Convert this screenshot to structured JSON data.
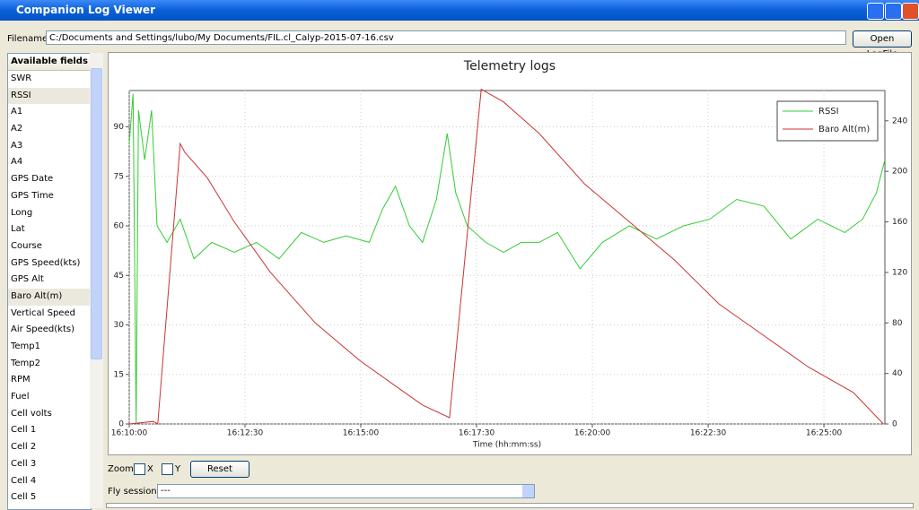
{
  "window": {
    "title": "Companion Log Viewer"
  },
  "filename": {
    "label": "Filename",
    "value": "C:/Documents and Settings/lubo/My Documents/FIL.cl_Calyp-2015-07-16.csv",
    "button": "Open LogFile"
  },
  "fields": {
    "header": "Available fields",
    "items": [
      "SWR",
      "RSSI",
      "A1",
      "A2",
      "A3",
      "A4",
      "GPS Date",
      "GPS Time",
      "Long",
      "Lat",
      "Course",
      "GPS Speed(kts)",
      "GPS Alt",
      "Baro Alt(m)",
      "Vertical Speed",
      "Air Speed(kts)",
      "Temp1",
      "Temp2",
      "RPM",
      "Fuel",
      "Cell volts",
      "Cell 1",
      "Cell 2",
      "Cell 3",
      "Cell 4",
      "Cell 5"
    ],
    "selected": [
      1,
      13
    ]
  },
  "controls": {
    "zoom": "Zoom",
    "x": "X",
    "y": "Y",
    "reset": "Reset",
    "fly_sessions": "Fly sessions",
    "session": "---"
  },
  "chart_data": {
    "type": "line",
    "title": "Telemetry logs",
    "x_label": "Time (hh:mm:ss)",
    "xlim": [
      "16:10:00",
      "16:26:19"
    ],
    "xticks": [
      "16:10:00",
      "16:12:30",
      "16:15:00",
      "16:17:30",
      "16:20:00",
      "16:22:30",
      "16:25:00"
    ],
    "ylim": [
      0,
      101
    ],
    "yticks": [
      0,
      15,
      30,
      45,
      60,
      75,
      90
    ],
    "y2lim": [
      0,
      264
    ],
    "y2ticks": [
      0,
      40,
      80,
      120,
      160,
      200,
      240
    ],
    "grid": true,
    "legend": "upper right",
    "series": [
      {
        "name": "RSSI",
        "color": "#33cc33",
        "x": [
          "16:10:00",
          "16:10:05",
          "16:10:09",
          "16:10:12",
          "16:10:20",
          "16:10:29",
          "16:10:36",
          "16:10:49",
          "16:11:06",
          "16:11:24",
          "16:11:47",
          "16:12:16",
          "16:12:45",
          "16:13:14",
          "16:13:43",
          "16:14:12",
          "16:14:41",
          "16:15:11",
          "16:15:28",
          "16:15:45",
          "16:16:03",
          "16:16:20",
          "16:16:38",
          "16:16:52",
          "16:17:03",
          "16:17:18",
          "16:17:42",
          "16:18:05",
          "16:18:28",
          "16:18:51",
          "16:19:15",
          "16:19:44",
          "16:20:13",
          "16:20:48",
          "16:21:23",
          "16:21:58",
          "16:22:32",
          "16:23:07",
          "16:23:42",
          "16:24:17",
          "16:24:52",
          "16:25:27",
          "16:25:50",
          "16:26:08",
          "16:26:19"
        ],
        "values": [
          85,
          100,
          0,
          95,
          80,
          95,
          60,
          55,
          62,
          50,
          55,
          52,
          55,
          50,
          58,
          55,
          57,
          55,
          65,
          72,
          60,
          55,
          68,
          88,
          70,
          60,
          55,
          52,
          55,
          55,
          58,
          47,
          55,
          60,
          56,
          60,
          62,
          68,
          66,
          56,
          62,
          58,
          62,
          70,
          80
        ]
      },
      {
        "name": "Baro Alt(m)",
        "color": "#cc3333",
        "axis": "y2",
        "x": [
          "16:10:00",
          "16:10:31",
          "16:10:37",
          "16:11:06",
          "16:11:12",
          "16:11:41",
          "16:12:16",
          "16:13:03",
          "16:14:01",
          "16:14:59",
          "16:15:45",
          "16:16:20",
          "16:16:55",
          "16:17:36",
          "16:18:05",
          "16:18:51",
          "16:19:50",
          "16:20:48",
          "16:21:46",
          "16:22:44",
          "16:23:42",
          "16:24:40",
          "16:25:38",
          "16:26:17"
        ],
        "values": [
          0,
          2,
          0,
          222,
          215,
          195,
          160,
          120,
          80,
          50,
          30,
          15,
          5,
          265,
          255,
          230,
          190,
          160,
          130,
          95,
          70,
          45,
          25,
          0
        ]
      }
    ]
  }
}
